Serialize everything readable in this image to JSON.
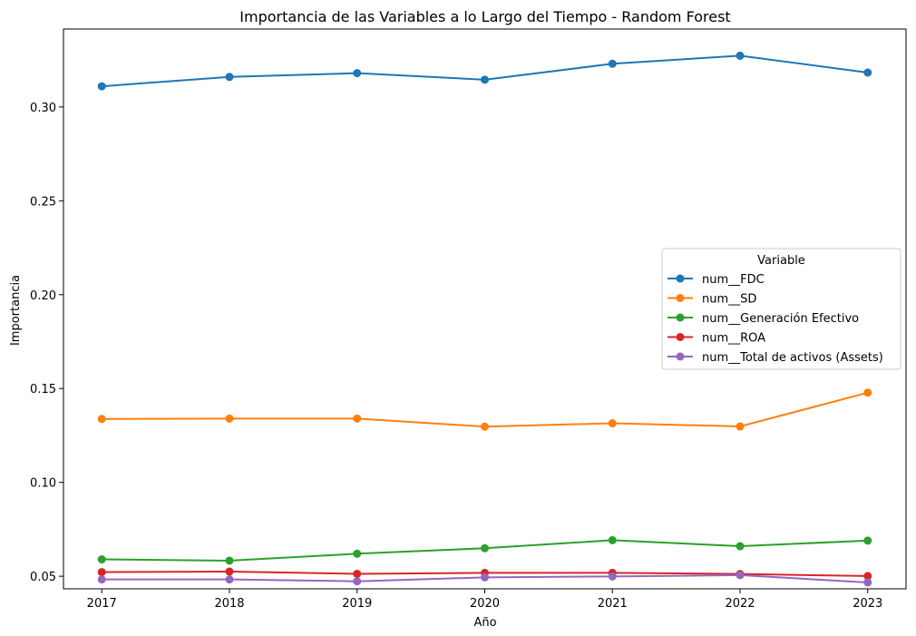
{
  "chart_data": {
    "type": "line",
    "title": "Importancia de las Variables a lo Largo del Tiempo - Random Forest",
    "xlabel": "Año",
    "ylabel": "Importancia",
    "x": [
      2017,
      2018,
      2019,
      2020,
      2021,
      2022,
      2023
    ],
    "xticks": [
      "2017",
      "2018",
      "2019",
      "2020",
      "2021",
      "2022",
      "2023"
    ],
    "yticks": [
      0.05,
      0.1,
      0.15,
      0.2,
      0.25,
      0.3
    ],
    "ytick_labels": [
      "0.05",
      "0.10",
      "0.15",
      "0.20",
      "0.25",
      "0.30"
    ],
    "ylim": [
      0.0433,
      0.3415
    ],
    "xlim": [
      2016.7,
      2023.3
    ],
    "grid": false,
    "legend": {
      "title": "Variable",
      "placement": "center-right"
    },
    "series": [
      {
        "name": "num__FDC",
        "color": "#1f77b4",
        "values": [
          0.311,
          0.316,
          0.318,
          0.3145,
          0.323,
          0.3273,
          0.3183
        ]
      },
      {
        "name": "num__SD",
        "color": "#ff7f0e",
        "values": [
          0.1338,
          0.134,
          0.134,
          0.1297,
          0.1315,
          0.1298,
          0.1478
        ]
      },
      {
        "name": "num__Generación Efectivo",
        "color": "#2ca02c",
        "values": [
          0.059,
          0.0583,
          0.062,
          0.0649,
          0.0692,
          0.066,
          0.069
        ]
      },
      {
        "name": "num__ROA",
        "color": "#d62728",
        "values": [
          0.0522,
          0.0525,
          0.0513,
          0.0518,
          0.0518,
          0.0512,
          0.0501
        ]
      },
      {
        "name": "num__Total de activos (Assets)",
        "color": "#9467bd",
        "values": [
          0.0483,
          0.0483,
          0.0473,
          0.0494,
          0.0499,
          0.0506,
          0.0467
        ]
      }
    ]
  }
}
